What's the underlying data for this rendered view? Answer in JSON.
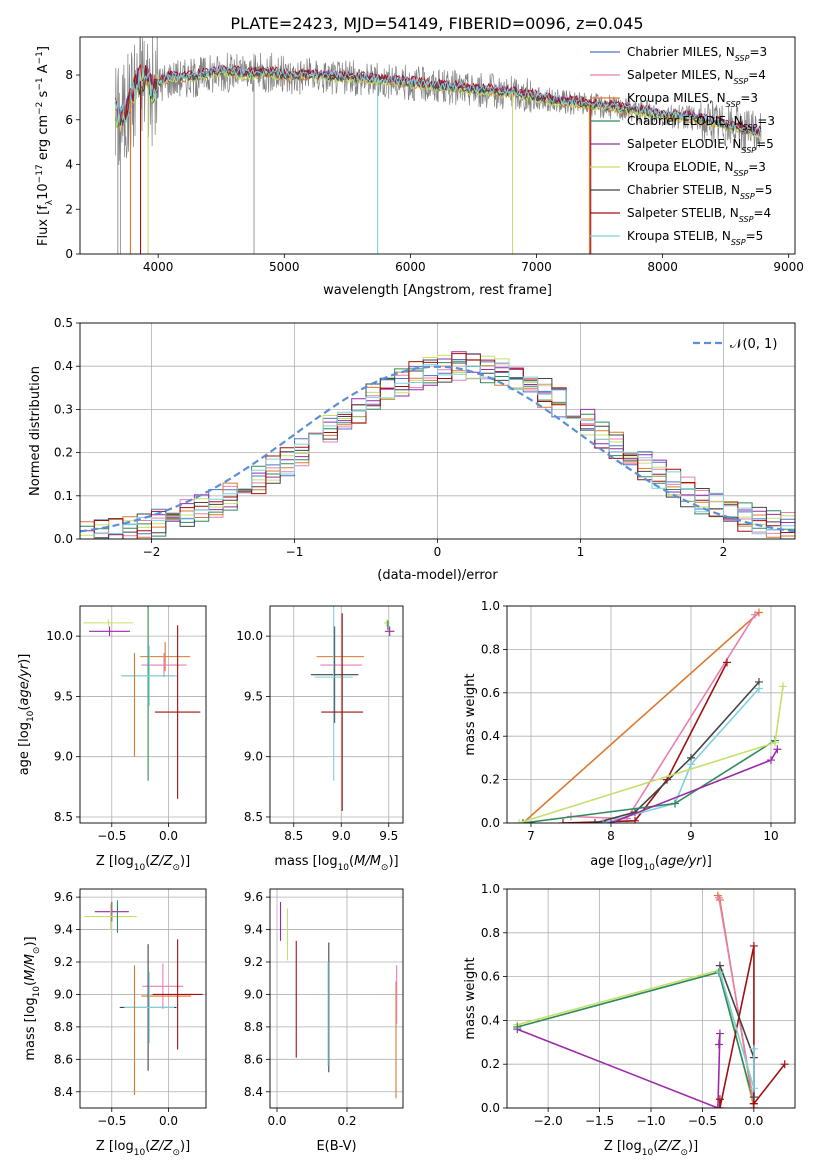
{
  "figure_title": "PLATE=2423, MJD=54149, FIBERID=0096, z=0.045",
  "colors": {
    "data": "#808080",
    "Chabrier MILES": "#5470c8",
    "Salpeter MILES": "#e87fb0",
    "Kroupa MILES": "#d97a30",
    "Chabrier ELODIE": "#2f8a5a",
    "Salpeter ELODIE": "#9a2aa8",
    "Kroupa ELODIE": "#c5e06a",
    "Chabrier STELIB": "#444444",
    "Salpeter STELIB": "#a01010",
    "Kroupa STELIB": "#7fd0dc",
    "normal": "#5b8fd8"
  },
  "legend_spectrum": [
    {
      "model": "Chabrier MILES",
      "label": "Chabrier MILES, N",
      "sub": "SSP",
      "value": "=3"
    },
    {
      "model": "Salpeter MILES",
      "label": "Salpeter MILES, N",
      "sub": "SSP",
      "value": "=4"
    },
    {
      "model": "Kroupa MILES",
      "label": "Kroupa MILES, N",
      "sub": "SSP",
      "value": "=3"
    },
    {
      "model": "Chabrier ELODIE",
      "label": "Chabrier ELODIE, N",
      "sub": "SSP",
      "value": "=3"
    },
    {
      "model": "Salpeter ELODIE",
      "label": "Salpeter ELODIE, N",
      "sub": "SSP",
      "value": "=5"
    },
    {
      "model": "Kroupa ELODIE",
      "label": "Kroupa ELODIE, N",
      "sub": "SSP",
      "value": "=3"
    },
    {
      "model": "Chabrier STELIB",
      "label": "Chabrier STELIB, N",
      "sub": "SSP",
      "value": "=5"
    },
    {
      "model": "Salpeter STELIB",
      "label": "Salpeter STELIB, N",
      "sub": "SSP",
      "value": "=4"
    },
    {
      "model": "Kroupa STELIB",
      "label": "Kroupa STELIB, N",
      "sub": "SSP",
      "value": "=5"
    }
  ],
  "legend_normal": "𝒩(0, 1)",
  "chart_data": [
    {
      "id": "spectrum",
      "type": "line",
      "xlabel": "wavelength [Angstrom, rest frame]",
      "ylabel": "Flux [f_λ 10^-17 erg cm^-2 s^-1 A^-1]",
      "xlim": [
        3380,
        9050
      ],
      "ylim": [
        0,
        9.7
      ],
      "xticks": [
        4000,
        5000,
        6000,
        7000,
        8000,
        9000
      ],
      "yticks": [
        0,
        2,
        4,
        6,
        8
      ],
      "grid": false,
      "legend_position": "right",
      "continuum": {
        "x": [
          3660,
          3700,
          3760,
          3830,
          3900,
          3960,
          4000,
          4100,
          4200,
          4300,
          4400,
          4500,
          4600,
          4700,
          4800,
          4900,
          5000,
          5200,
          5400,
          5600,
          5800,
          6000,
          6200,
          6400,
          6600,
          6800,
          7000,
          7200,
          7400,
          7600,
          7800,
          8000,
          8200,
          8400,
          8600,
          8780
        ],
        "y": [
          6.3,
          6.0,
          6.5,
          7.6,
          7.9,
          7.3,
          7.6,
          7.9,
          7.9,
          7.9,
          8.05,
          8.15,
          8.1,
          8.0,
          8.1,
          8.1,
          7.95,
          8.0,
          7.9,
          7.85,
          7.75,
          7.65,
          7.5,
          7.4,
          7.3,
          7.2,
          7.0,
          6.8,
          6.7,
          6.55,
          6.4,
          6.2,
          6.1,
          5.9,
          5.6,
          5.4
        ]
      },
      "series": [
        {
          "name": "Chabrier MILES",
          "seed": 3,
          "offset": 0.0
        },
        {
          "name": "Salpeter MILES",
          "seed": 5,
          "offset": 0.05
        },
        {
          "name": "Kroupa MILES",
          "seed": 7,
          "offset": -0.05
        },
        {
          "name": "Chabrier ELODIE",
          "seed": 11,
          "offset": 0.02
        },
        {
          "name": "Salpeter ELODIE",
          "seed": 13,
          "offset": 0.1
        },
        {
          "name": "Kroupa ELODIE",
          "seed": 17,
          "offset": -0.08
        },
        {
          "name": "Chabrier STELIB",
          "seed": 19,
          "offset": 0.03
        },
        {
          "name": "Salpeter STELIB",
          "seed": 23,
          "offset": 0.15
        },
        {
          "name": "Kroupa STELIB",
          "seed": 29,
          "offset": 0.08
        }
      ],
      "dropouts": [
        {
          "model": "Kroupa MILES",
          "x": 3780
        },
        {
          "model": "Salpeter STELIB",
          "x": 3860
        },
        {
          "model": "Kroupa ELODIE",
          "x": 3920
        },
        {
          "model": "Kroupa STELIB",
          "x": 5740
        },
        {
          "model": "Kroupa ELODIE",
          "x": 6810
        },
        {
          "model": "Kroupa MILES",
          "x": 7420
        },
        {
          "model": "Salpeter STELIB",
          "x": 7430
        }
      ]
    },
    {
      "id": "residual_histogram",
      "type": "step-histogram",
      "xlabel": "(data-model)/error",
      "ylabel": "Normed distribution",
      "xlim": [
        -2.5,
        2.5
      ],
      "ylim": [
        0,
        0.5
      ],
      "xticks": [
        -2,
        -1,
        0,
        1,
        2
      ],
      "yticks": [
        0.0,
        0.1,
        0.2,
        0.3,
        0.4,
        0.5
      ],
      "grid": true,
      "legend_position": "top-right",
      "bin_width": 0.1,
      "normal_mean_shift": 0.18
    },
    {
      "id": "age_vs_Z",
      "type": "errorbar",
      "xlabel": "Z [log10(Z/Z⊙)]",
      "ylabel": "age [log10(age/yr)]",
      "xlim": [
        -0.78,
        0.33
      ],
      "ylim": [
        8.45,
        10.25
      ],
      "xticks": [
        -0.5,
        0.0
      ],
      "yticks": [
        8.5,
        9.0,
        9.5,
        10.0
      ],
      "grid": true,
      "points": [
        {
          "model": "Kroupa ELODIE",
          "x": -0.53,
          "y": 10.11,
          "xerr": 0.22,
          "yerr": 0.03
        },
        {
          "model": "Salpeter ELODIE",
          "x": -0.52,
          "y": 10.04,
          "xerr": 0.18,
          "yerr": 0.04
        },
        {
          "model": "Kroupa MILES",
          "x": -0.03,
          "y": 9.83,
          "xerr": 0.22,
          "yerr": 0.12
        },
        {
          "model": "Salpeter MILES",
          "x": -0.04,
          "y": 9.76,
          "xerr": 0.2,
          "yerr": 0.1
        },
        {
          "model": "Chabrier ELODIE",
          "x": -0.18,
          "y": 9.67,
          "xerr": 0.22,
          "yerr": 0.87
        },
        {
          "model": "Kroupa STELIB",
          "x": -0.17,
          "y": 9.67,
          "xerr": 0.25,
          "yerr": 0.25
        },
        {
          "model": "Salpeter STELIB",
          "x": 0.08,
          "y": 9.37,
          "xerr": 0.2,
          "yerr": 0.72
        },
        {
          "model": "Kroupa MILES",
          "x": -0.3,
          "y": 9.43,
          "xerr": 0.0,
          "yerr": 0.43
        }
      ]
    },
    {
      "id": "age_vs_mass",
      "type": "errorbar",
      "xlabel": "mass [log10(M/M⊙)]",
      "ylabel": "",
      "xlim": [
        8.25,
        9.65
      ],
      "ylim": [
        8.45,
        10.25
      ],
      "xticks": [
        8.5,
        9.0,
        9.5
      ],
      "yticks": [
        8.5,
        9.0,
        9.5,
        10.0
      ],
      "grid": true,
      "points": [
        {
          "model": "Kroupa ELODIE",
          "x": 9.48,
          "y": 10.11,
          "xerr": 0.03,
          "yerr": 0.03
        },
        {
          "model": "Salpeter ELODIE",
          "x": 9.51,
          "y": 10.04,
          "xerr": 0.05,
          "yerr": 0.04
        },
        {
          "model": "Kroupa MILES",
          "x": 8.99,
          "y": 9.83,
          "xerr": 0.25,
          "yerr": 0.0
        },
        {
          "model": "Salpeter MILES",
          "x": 9.0,
          "y": 9.76,
          "xerr": 0.22,
          "yerr": 0.0
        },
        {
          "model": "Chabrier STELIB",
          "x": 8.93,
          "y": 9.68,
          "xerr": 0.25,
          "yerr": 0.4
        },
        {
          "model": "Kroupa STELIB",
          "x": 8.92,
          "y": 9.66,
          "xerr": 0.2,
          "yerr": 0.86
        },
        {
          "model": "Salpeter STELIB",
          "x": 9.01,
          "y": 9.37,
          "xerr": 0.22,
          "yerr": 0.82
        },
        {
          "model": "Chabrier ELODIE",
          "x": 9.49,
          "y": 10.09,
          "xerr": 0.0,
          "yerr": 0.04
        }
      ]
    },
    {
      "id": "mass_weight_vs_age",
      "type": "line",
      "xlabel": "age [log10(age/yr)]",
      "ylabel": "mass weight",
      "xlim": [
        6.7,
        10.3
      ],
      "ylim": [
        0,
        1.0
      ],
      "xticks": [
        7,
        8,
        9,
        10
      ],
      "yticks": [
        0.0,
        0.2,
        0.4,
        0.6,
        0.8,
        1.0
      ],
      "grid": true,
      "series": [
        {
          "name": "Kroupa MILES",
          "x": [
            6.9,
            9.85
          ],
          "y": [
            0.0,
            0.97
          ]
        },
        {
          "name": "Salpeter MILES",
          "x": [
            7.5,
            8.2,
            9.8
          ],
          "y": [
            0.03,
            0.02,
            0.96
          ]
        },
        {
          "name": "Salpeter STELIB",
          "x": [
            7.4,
            8.3,
            8.7,
            9.45
          ],
          "y": [
            0.0,
            0.01,
            0.2,
            0.74
          ]
        },
        {
          "name": "Chabrier STELIB",
          "x": [
            7.8,
            8.3,
            9.0,
            9.85
          ],
          "y": [
            0.0,
            0.05,
            0.3,
            0.65
          ]
        },
        {
          "name": "Kroupa STELIB",
          "x": [
            7.9,
            8.8,
            9.0,
            9.85
          ],
          "y": [
            0.0,
            0.09,
            0.27,
            0.62
          ]
        },
        {
          "name": "Chabrier ELODIE",
          "x": [
            6.9,
            8.8,
            10.05
          ],
          "y": [
            0.0,
            0.09,
            0.38
          ]
        },
        {
          "name": "Kroupa ELODIE",
          "x": [
            6.85,
            10.05,
            10.15
          ],
          "y": [
            0.0,
            0.37,
            0.63
          ]
        },
        {
          "name": "Salpeter ELODIE",
          "x": [
            8.0,
            10.0,
            10.08
          ],
          "y": [
            0.0,
            0.29,
            0.34
          ]
        }
      ]
    },
    {
      "id": "mass_vs_Z",
      "type": "errorbar",
      "xlabel": "Z [log10(Z/Z⊙)]",
      "ylabel": "mass [log10(M/M⊙)]",
      "xlim": [
        -0.78,
        0.33
      ],
      "ylim": [
        8.3,
        9.65
      ],
      "xticks": [
        -0.5,
        0.0
      ],
      "yticks": [
        8.4,
        8.6,
        8.8,
        9.0,
        9.2,
        9.4,
        9.6
      ],
      "grid": true,
      "points": [
        {
          "model": "Salpeter ELODIE",
          "x": -0.5,
          "y": 9.51,
          "xerr": 0.15,
          "yerr": 0.06
        },
        {
          "model": "Kroupa ELODIE",
          "x": -0.51,
          "y": 9.48,
          "xerr": 0.23,
          "yerr": 0.08
        },
        {
          "model": "Chabrier ELODIE",
          "x": -0.45,
          "y": 9.48,
          "xerr": 0.0,
          "yerr": 0.1
        },
        {
          "model": "Salpeter MILES",
          "x": -0.05,
          "y": 9.05,
          "xerr": 0.18,
          "yerr": 0.14
        },
        {
          "model": "Kroupa MILES",
          "x": -0.02,
          "y": 8.99,
          "xerr": 0.22,
          "yerr": 0.0
        },
        {
          "model": "Salpeter STELIB",
          "x": 0.08,
          "y": 9.0,
          "xerr": 0.22,
          "yerr": 0.34
        },
        {
          "model": "Chabrier STELIB",
          "x": -0.18,
          "y": 8.92,
          "xerr": 0.25,
          "yerr": 0.39
        },
        {
          "model": "Kroupa STELIB",
          "x": -0.17,
          "y": 8.92,
          "xerr": 0.22,
          "yerr": 0.22
        },
        {
          "model": "Kroupa MILES",
          "x": -0.3,
          "y": 8.78,
          "xerr": 0.0,
          "yerr": 0.4
        }
      ]
    },
    {
      "id": "mass_vs_EBV",
      "type": "errorbar",
      "xlabel": "E(B-V)",
      "ylabel": "",
      "xlim": [
        -0.02,
        0.36
      ],
      "ylim": [
        8.3,
        9.65
      ],
      "xticks": [
        0.0,
        0.2
      ],
      "yticks": [
        8.4,
        8.6,
        8.8,
        9.0,
        9.2,
        9.4,
        9.6
      ],
      "grid": true,
      "points": [
        {
          "model": "Salpeter ELODIE",
          "x": 0.01,
          "y": 9.45,
          "xerr": 0.0,
          "yerr": 0.12
        },
        {
          "model": "Kroupa ELODIE",
          "x": 0.03,
          "y": 9.37,
          "xerr": 0.0,
          "yerr": 0.16
        },
        {
          "model": "Salpeter STELIB",
          "x": 0.055,
          "y": 8.97,
          "xerr": 0.0,
          "yerr": 0.36
        },
        {
          "model": "Chabrier STELIB",
          "x": 0.148,
          "y": 8.92,
          "xerr": 0.0,
          "yerr": 0.4
        },
        {
          "model": "Kroupa STELIB",
          "x": 0.146,
          "y": 8.88,
          "xerr": 0.0,
          "yerr": 0.32
        },
        {
          "model": "Kroupa MILES",
          "x": 0.34,
          "y": 8.72,
          "xerr": 0.0,
          "yerr": 0.36
        },
        {
          "model": "Salpeter MILES",
          "x": 0.342,
          "y": 9.0,
          "xerr": 0.0,
          "yerr": 0.18
        }
      ]
    },
    {
      "id": "mass_weight_vs_Z",
      "type": "line",
      "xlabel": "Z [log10(Z/Z⊙)]",
      "ylabel": "mass weight",
      "xlim": [
        -2.4,
        0.4
      ],
      "ylim": [
        0,
        1.0
      ],
      "xticks": [
        -2.0,
        -1.5,
        -1.0,
        -0.5,
        0.0
      ],
      "yticks": [
        0.0,
        0.2,
        0.4,
        0.6,
        0.8,
        1.0
      ],
      "grid": true,
      "series": [
        {
          "name": "Salpeter ELODIE",
          "x": [
            -2.3,
            -0.35,
            -0.33,
            -0.34
          ],
          "y": [
            0.36,
            0.0,
            0.34,
            0.29
          ]
        },
        {
          "name": "Kroupa ELODIE",
          "x": [
            -2.3,
            -0.33,
            0.0
          ],
          "y": [
            0.38,
            0.63,
            0.0
          ]
        },
        {
          "name": "Chabrier ELODIE",
          "x": [
            -2.3,
            -0.34,
            0.0
          ],
          "y": [
            0.37,
            0.62,
            0.02
          ]
        },
        {
          "name": "Kroupa MILES",
          "x": [
            -0.35,
            -0.33,
            0.0
          ],
          "y": [
            0.97,
            0.95,
            0.0
          ]
        },
        {
          "name": "Salpeter MILES",
          "x": [
            -0.34,
            0.0,
            0.0
          ],
          "y": [
            0.96,
            0.02,
            0.0
          ]
        },
        {
          "name": "Salpeter STELIB",
          "x": [
            -0.33,
            -0.33,
            0.0,
            0.0,
            0.3
          ],
          "y": [
            0.04,
            0.0,
            0.74,
            0.02,
            0.2
          ]
        },
        {
          "name": "Chabrier STELIB",
          "x": [
            -0.33,
            0.0,
            0.0
          ],
          "y": [
            0.65,
            0.23,
            0.05
          ]
        },
        {
          "name": "Kroupa STELIB",
          "x": [
            -0.33,
            0.0,
            0.0
          ],
          "y": [
            0.62,
            0.09,
            0.27
          ]
        }
      ]
    }
  ]
}
